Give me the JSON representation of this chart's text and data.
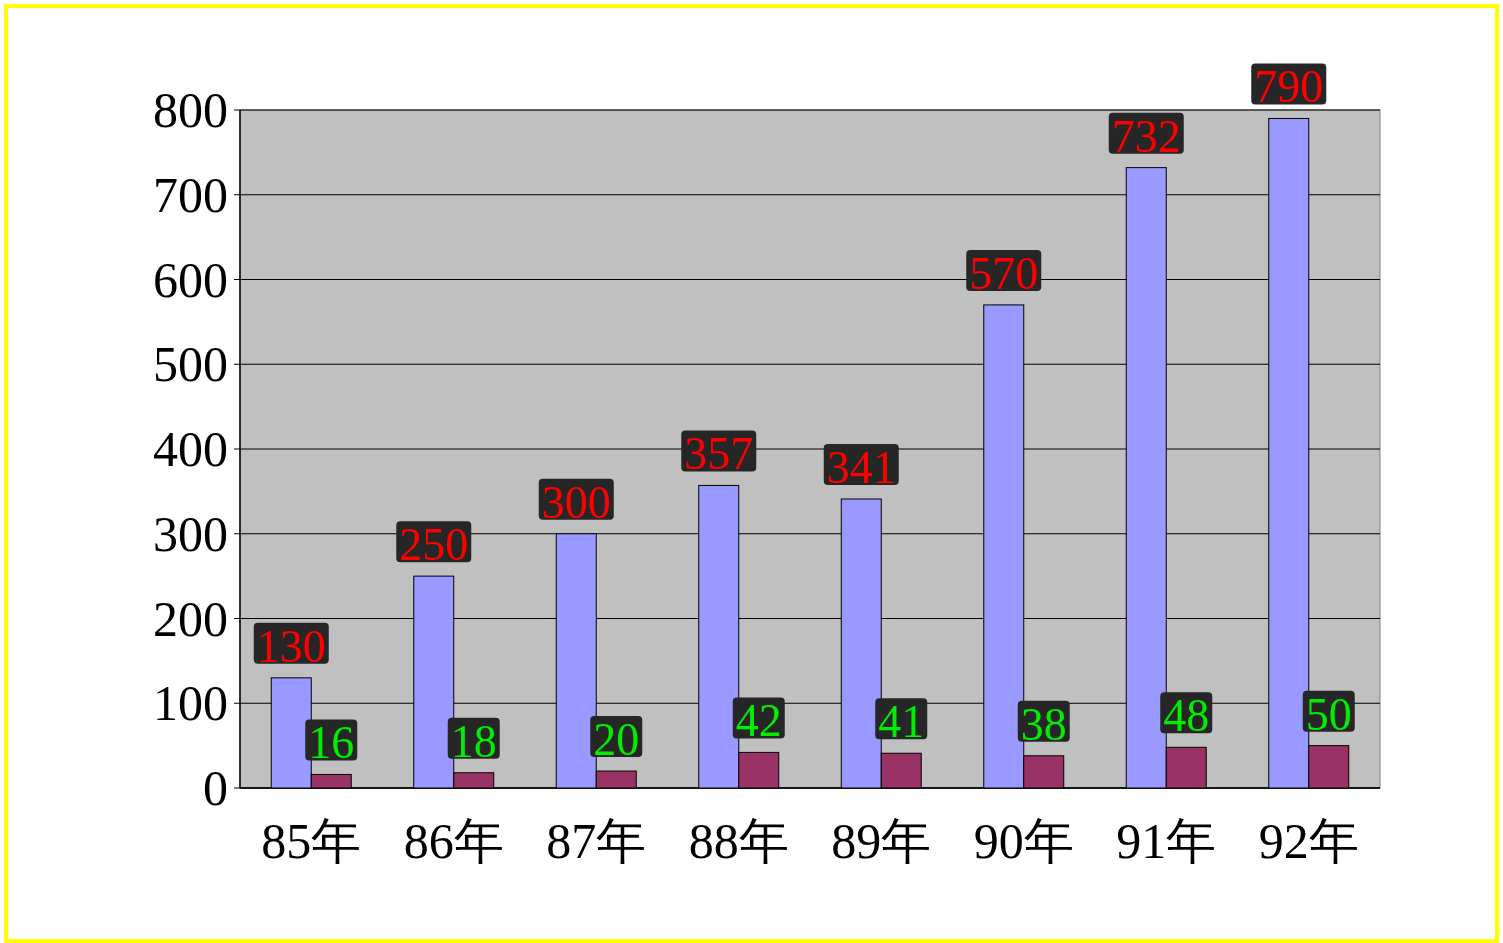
{
  "chart_data": {
    "type": "bar",
    "categories": [
      "85年",
      "86年",
      "87年",
      "88年",
      "89年",
      "90年",
      "91年",
      "92年"
    ],
    "series": [
      {
        "color": "#9999ff",
        "values": [
          130,
          250,
          300,
          357,
          341,
          570,
          732,
          790
        ]
      },
      {
        "color": "#993366",
        "values": [
          16,
          18,
          20,
          42,
          41,
          38,
          48,
          50
        ]
      }
    ],
    "ylim": [
      0,
      800
    ],
    "yticks": [
      0,
      100,
      200,
      300,
      400,
      500,
      600,
      700,
      800
    ],
    "grid": "y",
    "data_labels": true
  }
}
